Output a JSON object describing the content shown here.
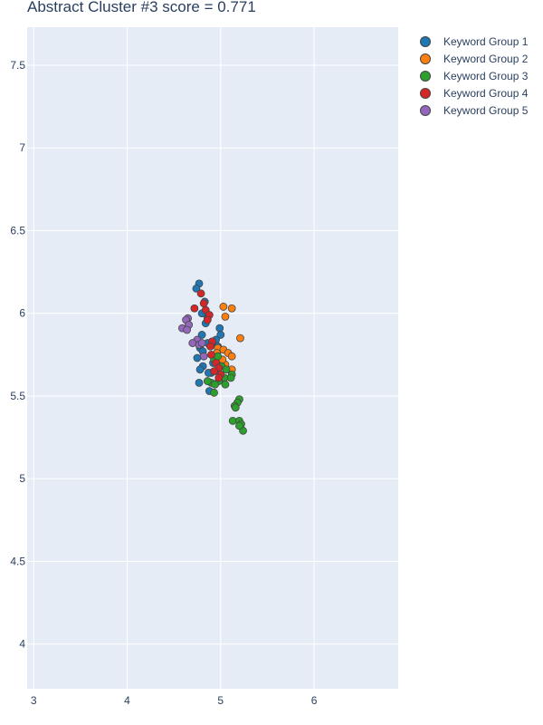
{
  "chart_data": {
    "type": "scatter",
    "title": "Abstract Cluster #3 score = 0.771",
    "xlim": [
      2.93,
      6.9
    ],
    "ylim": [
      3.73,
      7.73
    ],
    "xticks": [
      3,
      4,
      5,
      6
    ],
    "yticks": [
      4,
      4.5,
      5,
      5.5,
      6,
      6.5,
      7,
      7.5
    ],
    "legend_position": "top-right",
    "series": [
      {
        "name": "Keyword Group 1",
        "color": "#1f77b4",
        "points": [
          [
            4.77,
            6.18
          ],
          [
            4.74,
            6.15
          ],
          [
            4.83,
            6.07
          ],
          [
            4.8,
            6.0
          ],
          [
            4.86,
            5.97
          ],
          [
            4.84,
            5.94
          ],
          [
            4.99,
            5.91
          ],
          [
            5.0,
            5.87
          ],
          [
            4.8,
            5.87
          ],
          [
            4.95,
            5.84
          ],
          [
            4.86,
            5.82
          ],
          [
            4.78,
            5.79
          ],
          [
            4.81,
            5.77
          ],
          [
            4.75,
            5.73
          ],
          [
            4.81,
            5.68
          ],
          [
            4.78,
            5.66
          ],
          [
            4.9,
            5.64
          ],
          [
            4.87,
            5.64
          ],
          [
            4.77,
            5.58
          ],
          [
            4.88,
            5.53
          ],
          [
            4.92,
            5.7
          ],
          [
            4.97,
            5.8
          ]
        ]
      },
      {
        "name": "Keyword Group 2",
        "color": "#ff7f0e",
        "points": [
          [
            5.03,
            6.04
          ],
          [
            5.12,
            6.03
          ],
          [
            5.05,
            5.98
          ],
          [
            5.21,
            5.85
          ],
          [
            4.97,
            5.79
          ],
          [
            5.03,
            5.78
          ],
          [
            5.08,
            5.76
          ],
          [
            5.12,
            5.74
          ],
          [
            5.0,
            5.71
          ],
          [
            5.05,
            5.69
          ],
          [
            5.12,
            5.66
          ],
          [
            5.02,
            5.72
          ],
          [
            4.96,
            5.76
          ]
        ]
      },
      {
        "name": "Keyword Group 3",
        "color": "#2ca02c",
        "points": [
          [
            4.93,
            5.72
          ],
          [
            4.97,
            5.74
          ],
          [
            5.01,
            5.68
          ],
          [
            5.06,
            5.66
          ],
          [
            5.12,
            5.63
          ],
          [
            5.11,
            5.61
          ],
          [
            5.04,
            5.61
          ],
          [
            4.98,
            5.59
          ],
          [
            4.9,
            5.58
          ],
          [
            4.86,
            5.59
          ],
          [
            4.94,
            5.57
          ],
          [
            5.05,
            5.57
          ],
          [
            4.93,
            5.52
          ],
          [
            5.2,
            5.48
          ],
          [
            5.18,
            5.46
          ],
          [
            5.15,
            5.44
          ],
          [
            5.16,
            5.43
          ],
          [
            5.13,
            5.35
          ],
          [
            5.2,
            5.35
          ],
          [
            5.22,
            5.33
          ],
          [
            5.24,
            5.29
          ],
          [
            5.2,
            5.32
          ]
        ]
      },
      {
        "name": "Keyword Group 4",
        "color": "#d62728",
        "points": [
          [
            4.79,
            6.12
          ],
          [
            4.72,
            6.03
          ],
          [
            4.82,
            6.06
          ],
          [
            4.84,
            6.02
          ],
          [
            4.88,
            5.99
          ],
          [
            4.86,
            5.96
          ],
          [
            4.91,
            5.83
          ],
          [
            4.89,
            5.8
          ],
          [
            4.9,
            5.75
          ],
          [
            4.95,
            5.7
          ],
          [
            4.98,
            5.67
          ],
          [
            4.93,
            5.65
          ],
          [
            5.0,
            5.63
          ],
          [
            4.98,
            5.61
          ]
        ]
      },
      {
        "name": "Keyword Group 5",
        "color": "#9467bd",
        "points": [
          [
            4.65,
            5.97
          ],
          [
            4.63,
            5.96
          ],
          [
            4.66,
            5.93
          ],
          [
            4.59,
            5.91
          ],
          [
            4.64,
            5.9
          ],
          [
            4.75,
            5.84
          ],
          [
            4.7,
            5.82
          ],
          [
            4.77,
            5.81
          ],
          [
            4.8,
            5.82
          ],
          [
            4.82,
            5.74
          ]
        ]
      }
    ]
  }
}
